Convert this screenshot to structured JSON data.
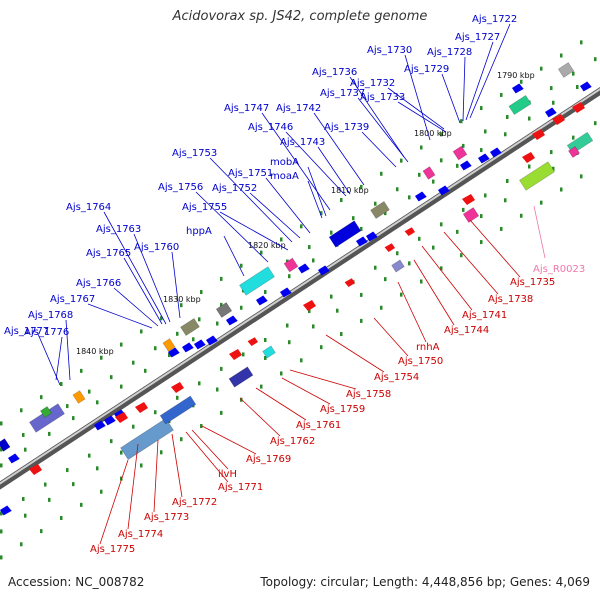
{
  "title": "Acidovorax sp. JS42, complete genome",
  "accession_text": "Accession: NC_008782",
  "summary_text": "Topology: circular; Length: 4,448,856 bp; Genes: 4,069",
  "colors": {
    "plus_label": "#0000cc",
    "minus_label": "#cc0000",
    "rna_label": "#ee77aa",
    "backbone": "#888888",
    "tick": "#2a8a2a",
    "scale_text": "#111111"
  },
  "scale_ticks": [
    {
      "label": "1790 kbp"
    },
    {
      "label": "1800 kbp"
    },
    {
      "label": "1810 kbp"
    },
    {
      "label": "1820 kbp"
    },
    {
      "label": "1830 kbp"
    },
    {
      "label": "1840 kbp"
    }
  ],
  "plus_labels": [
    "Ajs_1722",
    "Ajs_1727",
    "Ajs_1728",
    "Ajs_1729",
    "Ajs_1730",
    "Ajs_1732",
    "Ajs_1733",
    "Ajs_1736",
    "Ajs_1737",
    "Ajs_1739",
    "Ajs_1742",
    "Ajs_1743",
    "Ajs_1746",
    "Ajs_1747",
    "mobA",
    "moaA",
    "Ajs_1751",
    "Ajs_1752",
    "Ajs_1753",
    "Ajs_1755",
    "Ajs_1756",
    "hppA",
    "Ajs_1760",
    "Ajs_1763",
    "Ajs_1764",
    "Ajs_1765",
    "Ajs_1766",
    "Ajs_1767",
    "Ajs_1768",
    "Ajs_1776",
    "Ajs_1777"
  ],
  "minus_labels": [
    "Ajs_1735",
    "Ajs_1738",
    "Ajs_1741",
    "Ajs_1744",
    "rnhA",
    "Ajs_1750",
    "Ajs_1754",
    "Ajs_1758",
    "Ajs_1759",
    "Ajs_1761",
    "Ajs_1762",
    "Ajs_1769",
    "ilvH",
    "Ajs_1771",
    "Ajs_1772",
    "Ajs_1773",
    "Ajs_1774",
    "Ajs_1775"
  ],
  "rna_labels": [
    "Ajs_R0023"
  ]
}
